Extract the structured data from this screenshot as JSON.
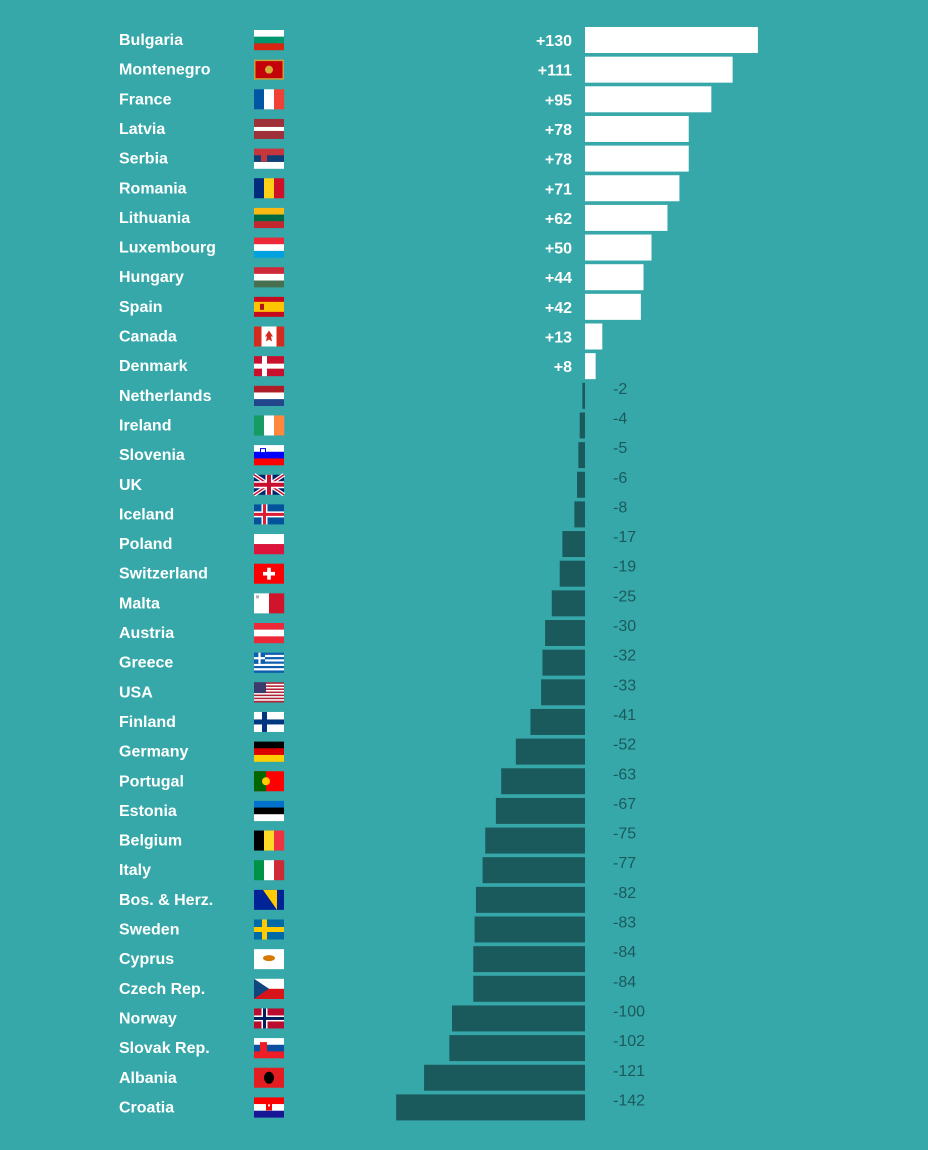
{
  "chart_data": {
    "type": "bar",
    "orientation": "horizontal",
    "colors": {
      "positive": "#ffffff",
      "negative": "#1b5a5c",
      "background": "#36a8a9"
    },
    "grid": false,
    "legend": "none",
    "categories": [
      "Bulgaria",
      "Montenegro",
      "France",
      "Latvia",
      "Serbia",
      "Romania",
      "Lithuania",
      "Luxembourg",
      "Hungary",
      "Spain",
      "Canada",
      "Denmark",
      "Netherlands",
      "Ireland",
      "Slovenia",
      "UK",
      "Iceland",
      "Poland",
      "Switzerland",
      "Malta",
      "Austria",
      "Greece",
      "USA",
      "Finland",
      "Germany",
      "Portugal",
      "Estonia",
      "Belgium",
      "Italy",
      "Bos. & Herz.",
      "Sweden",
      "Cyprus",
      "Czech Rep.",
      "Norway",
      "Slovak Rep.",
      "Albania",
      "Croatia"
    ],
    "values": [
      130,
      111,
      95,
      78,
      78,
      71,
      62,
      50,
      44,
      42,
      13,
      8,
      -2,
      -4,
      -5,
      -6,
      -8,
      -17,
      -19,
      -25,
      -30,
      -32,
      -33,
      -41,
      -52,
      -63,
      -67,
      -75,
      -77,
      -82,
      -83,
      -84,
      -84,
      -100,
      -102,
      -121,
      -142
    ],
    "labels": [
      "+130",
      "+111",
      "+95",
      "+78",
      "+78",
      "+71",
      "+62",
      "+50",
      "+44",
      "+42",
      "+13",
      "+8",
      "-2",
      "-4",
      "-5",
      "-6",
      "-8",
      "-17",
      "-19",
      "-25",
      "-30",
      "-32",
      "-33",
      "-41",
      "-52",
      "-63",
      "-67",
      "-75",
      "-77",
      "-82",
      "-83",
      "-84",
      "-84",
      "-100",
      "-102",
      "-121",
      "-142"
    ],
    "flags": [
      "bg",
      "me",
      "fr",
      "lv",
      "rs",
      "ro",
      "lt",
      "lu",
      "hu",
      "es",
      "ca",
      "dk",
      "nl",
      "ie",
      "si",
      "gb",
      "is",
      "pl",
      "ch",
      "mt",
      "at",
      "gr",
      "us",
      "fi",
      "de",
      "pt",
      "ee",
      "be",
      "it",
      "ba",
      "se",
      "cy",
      "cz",
      "no",
      "sk",
      "al",
      "hr"
    ]
  }
}
